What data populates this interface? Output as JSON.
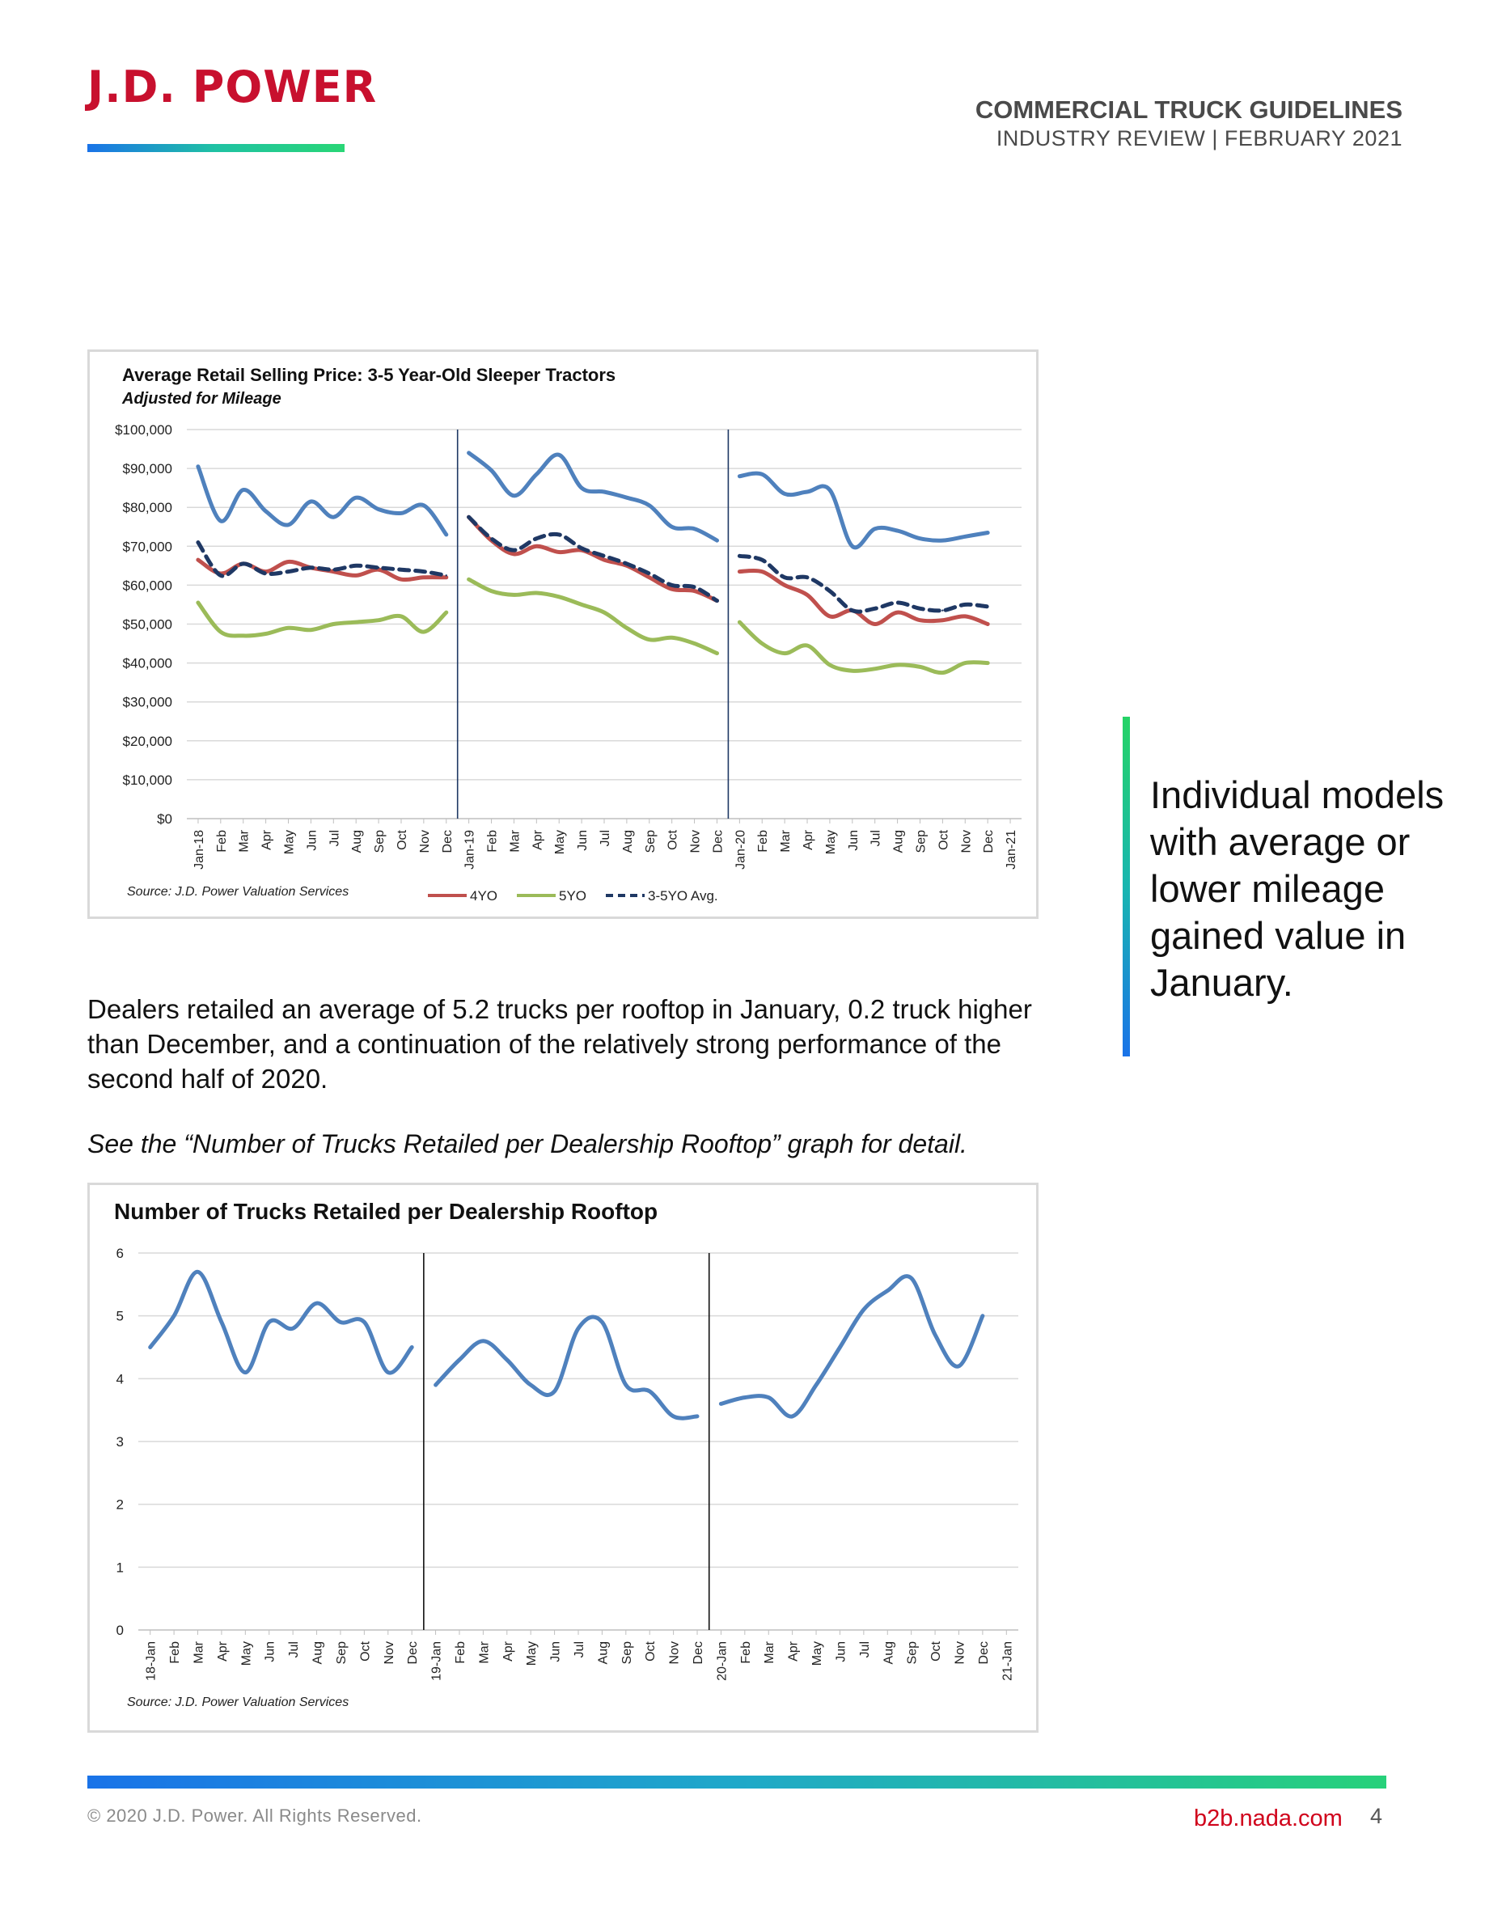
{
  "header": {
    "logo_text": "J.D. POWER",
    "title": "COMMERCIAL TRUCK GUIDELINES",
    "subtitle": "INDUSTRY REVIEW | FEBRUARY 2021"
  },
  "body": {
    "paragraph": "Dealers retailed an average of 5.2 trucks per rooftop in January, 0.2 truck higher than December, and a continuation of the relatively strong performance of the second half of 2020.",
    "note": "See the “Number of Trucks Retailed per Dealership Rooftop” graph for detail."
  },
  "sidebar": {
    "callout": "Individual models with average or lower mileage gained value in January.",
    "accent_colors": [
      "#25d366",
      "#1a73e8"
    ]
  },
  "footer": {
    "copyright": "© 2020 J.D. Power. All Rights Reserved.",
    "site": "b2b.nada.com",
    "page": "4"
  },
  "chart_data": [
    {
      "type": "line",
      "title": "Average Retail Selling Price: 3-5 Year-Old Sleeper Tractors",
      "subtitle": "Adjusted for Mileage",
      "source": "Source: J.D. Power Valuation Services",
      "categories": [
        "Jan-18",
        "Feb",
        "Mar",
        "Apr",
        "May",
        "Jun",
        "Jul",
        "Aug",
        "Sep",
        "Oct",
        "Nov",
        "Dec",
        "Jan-19",
        "Feb",
        "Mar",
        "Apr",
        "May",
        "Jun",
        "Jul",
        "Aug",
        "Sep",
        "Oct",
        "Nov",
        "Dec",
        "Jan-20",
        "Feb",
        "Mar",
        "Apr",
        "May",
        "Jun",
        "Jul",
        "Aug",
        "Sep",
        "Oct",
        "Nov",
        "Dec",
        "Jan-21"
      ],
      "yticks": [
        "$0",
        "$10,000",
        "$20,000",
        "$30,000",
        "$40,000",
        "$50,000",
        "$60,000",
        "$70,000",
        "$80,000",
        "$90,000",
        "$100,000"
      ],
      "ylim": [
        0,
        100000
      ],
      "grid": true,
      "legend_position": "bottom",
      "year_separators_after_index": [
        11,
        23
      ],
      "series": [
        {
          "name": "",
          "color": "#4f81bd",
          "dashed": false,
          "values": [
            90500,
            76500,
            84500,
            79000,
            75500,
            81500,
            77500,
            82500,
            79500,
            78500,
            80500,
            73000,
            94000,
            89500,
            83000,
            88500,
            93500,
            85000,
            84000,
            82500,
            80500,
            75000,
            74500,
            71500,
            88000,
            88500,
            83500,
            84000,
            84500,
            70000,
            74500,
            74000,
            72000,
            71500,
            72500,
            73500,
            null
          ]
        },
        {
          "name": "4YO",
          "color": "#c0504d",
          "dashed": false,
          "values": [
            66500,
            63000,
            65500,
            63500,
            66000,
            64500,
            63500,
            62500,
            64000,
            61500,
            62000,
            62000,
            77500,
            71500,
            68000,
            70000,
            68500,
            69000,
            66500,
            65000,
            62000,
            59000,
            58500,
            56000,
            63500,
            63500,
            60000,
            57500,
            52000,
            53500,
            50000,
            53000,
            51000,
            51000,
            52000,
            50000,
            null
          ]
        },
        {
          "name": "5YO",
          "color": "#9bbb59",
          "dashed": false,
          "values": [
            55500,
            48000,
            47000,
            47500,
            49000,
            48500,
            50000,
            50500,
            51000,
            52000,
            48000,
            53000,
            61500,
            58500,
            57500,
            58000,
            57000,
            55000,
            53000,
            49000,
            46000,
            46500,
            45000,
            42500,
            50500,
            45000,
            42500,
            44500,
            39500,
            38000,
            38500,
            39500,
            39000,
            37500,
            40000,
            40000,
            null
          ]
        },
        {
          "name": "3-5YO Avg.",
          "color": "#1f3864",
          "dashed": true,
          "values": [
            71000,
            62500,
            65500,
            63000,
            63500,
            64500,
            64000,
            65000,
            64500,
            64000,
            63500,
            62500,
            77500,
            72000,
            69000,
            72000,
            73000,
            69500,
            67500,
            65500,
            63000,
            60000,
            59500,
            56000,
            67500,
            66500,
            62000,
            62000,
            58500,
            53500,
            54000,
            55500,
            54000,
            53500,
            55000,
            54500,
            null
          ]
        }
      ]
    },
    {
      "type": "line",
      "title": "Number of Trucks Retailed per Dealership Rooftop",
      "source": "Source: J.D. Power Valuation Services",
      "categories": [
        "18-Jan",
        "Feb",
        "Mar",
        "Apr",
        "May",
        "Jun",
        "Jul",
        "Aug",
        "Sep",
        "Oct",
        "Nov",
        "Dec",
        "19-Jan",
        "Feb",
        "Mar",
        "Apr",
        "May",
        "Jun",
        "Jul",
        "Aug",
        "Sep",
        "Oct",
        "Nov",
        "Dec",
        "20-Jan",
        "Feb",
        "Mar",
        "Apr",
        "May",
        "Jun",
        "Jul",
        "Aug",
        "Sep",
        "Oct",
        "Nov",
        "Dec",
        "21-Jan"
      ],
      "yticks": [
        "0",
        "1",
        "2",
        "3",
        "4",
        "5",
        "6"
      ],
      "ylim": [
        0,
        6
      ],
      "grid": true,
      "year_separators_after_index": [
        11,
        23
      ],
      "series": [
        {
          "name": "",
          "color": "#4f81bd",
          "dashed": false,
          "values": [
            4.5,
            5.0,
            5.7,
            4.9,
            4.1,
            4.9,
            4.8,
            5.2,
            4.9,
            4.9,
            4.1,
            4.5,
            3.9,
            4.3,
            4.6,
            4.3,
            3.9,
            3.8,
            4.8,
            4.9,
            3.9,
            3.8,
            3.4,
            3.4,
            3.6,
            3.7,
            3.7,
            3.4,
            3.9,
            4.5,
            5.1,
            5.4,
            5.6,
            4.7,
            4.2,
            5.0,
            null
          ]
        }
      ]
    }
  ]
}
